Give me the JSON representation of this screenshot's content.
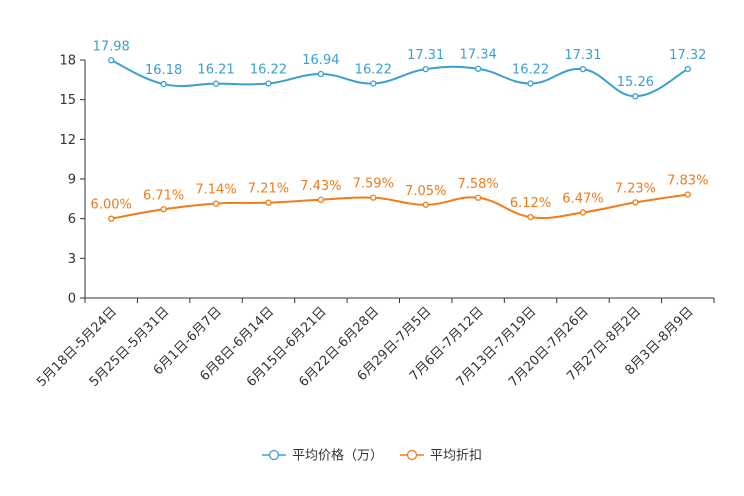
{
  "chart_data": {
    "type": "line",
    "title": "",
    "xlabel": "",
    "ylabel": "",
    "ylim": [
      0,
      18
    ],
    "yticks": [
      "0",
      "3",
      "6",
      "9",
      "12",
      "15",
      "18"
    ],
    "grid": false,
    "legend_position": "bottom-center",
    "categories": [
      "5月18日-5月24日",
      "5月25日-5月31日",
      "6月1日-6月7日",
      "6月8日-6月14日",
      "6月15日-6月21日",
      "6月22日-6月28日",
      "6月29日-7月5日",
      "7月6日-7月12日",
      "7月13日-7月19日",
      "7月20日-7月26日",
      "7月27日-8月2日",
      "8月3日-8月9日"
    ],
    "series": [
      {
        "name": "平均价格（万）",
        "color": "#3ba0d1",
        "values": [
          17.98,
          16.18,
          16.21,
          16.22,
          16.94,
          16.22,
          17.31,
          17.34,
          16.22,
          17.31,
          15.26,
          17.32
        ],
        "labels": [
          "17.98",
          "16.18",
          "16.21",
          "16.22",
          "16.94",
          "16.22",
          "17.31",
          "17.34",
          "16.22",
          "17.31",
          "15.26",
          "17.32"
        ]
      },
      {
        "name": "平均折扣",
        "color": "#f07c1a",
        "values": [
          6.0,
          6.71,
          7.14,
          7.21,
          7.43,
          7.59,
          7.05,
          7.58,
          6.12,
          6.47,
          7.23,
          7.83
        ],
        "labels": [
          "6.00%",
          "6.71%",
          "7.14%",
          "7.21%",
          "7.43%",
          "7.59%",
          "7.05%",
          "7.58%",
          "6.12%",
          "6.47%",
          "7.23%",
          "7.83%"
        ]
      }
    ]
  }
}
